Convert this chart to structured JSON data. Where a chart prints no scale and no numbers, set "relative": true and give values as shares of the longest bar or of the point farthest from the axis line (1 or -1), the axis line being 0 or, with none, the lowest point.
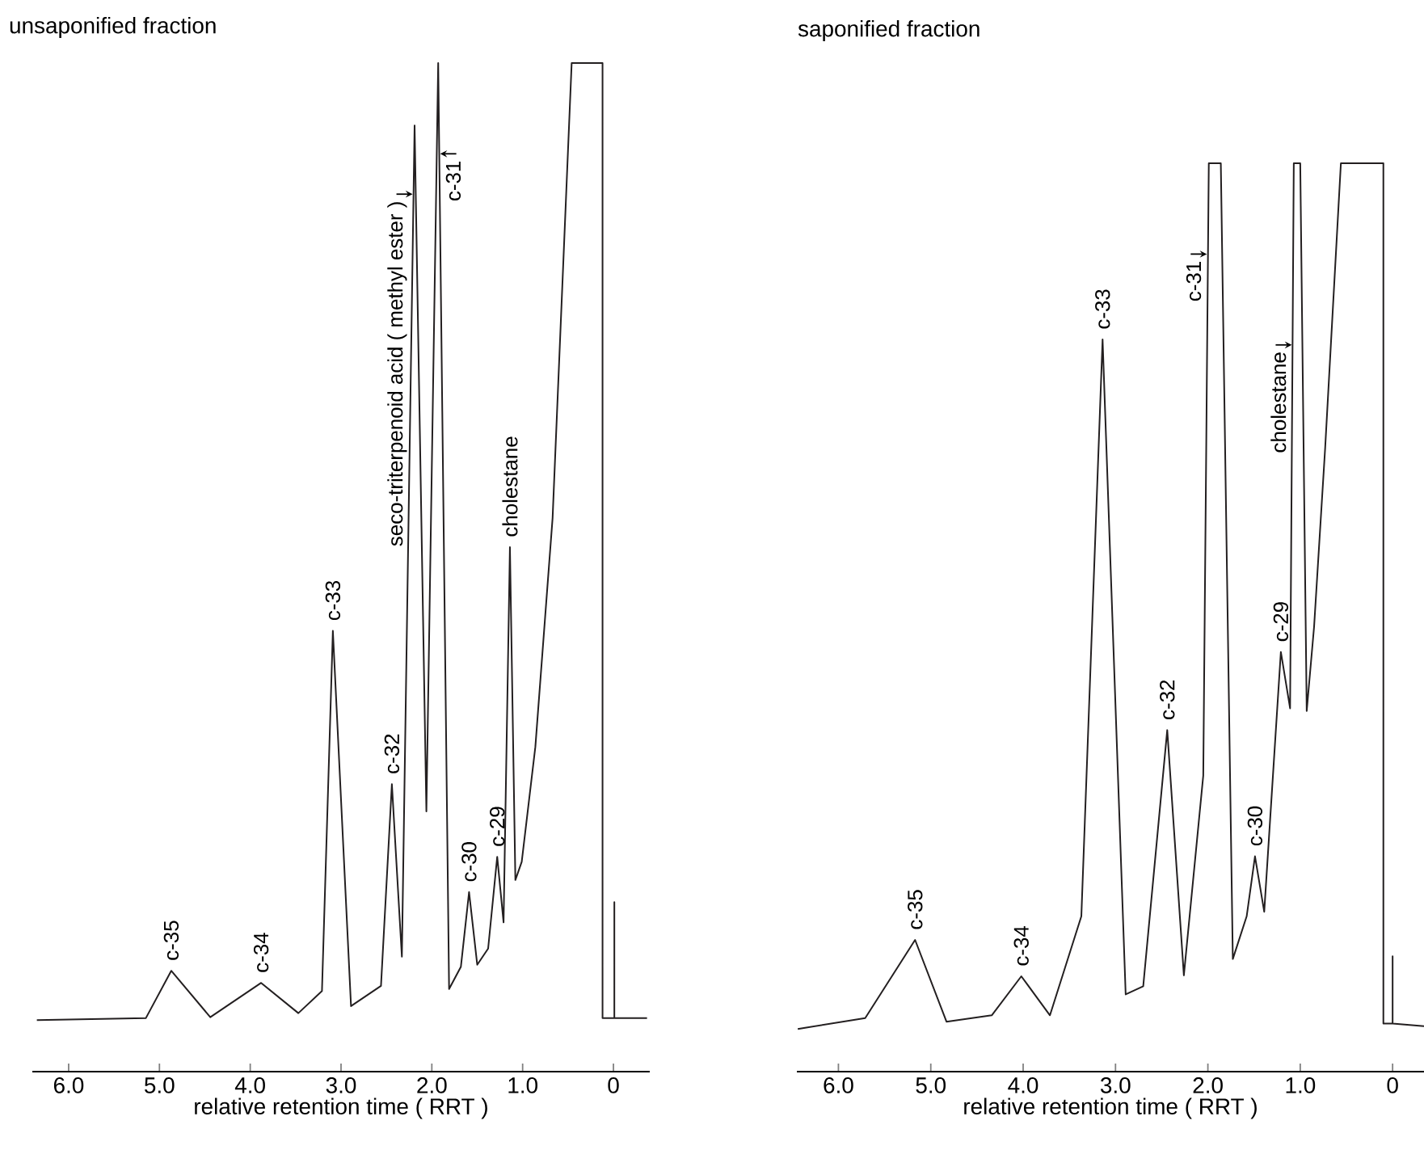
{
  "chart_data": [
    {
      "type": "line",
      "title": "unsaponified fraction",
      "xlabel": "relative retention time ( RRT )",
      "relative": true,
      "xlim": [
        6.4,
        -0.4
      ],
      "xticks": [
        {
          "value": 6,
          "label": "6.0"
        },
        {
          "value": 5,
          "label": "5.0"
        },
        {
          "value": 4,
          "label": "4.0"
        },
        {
          "value": 3,
          "label": "3.0"
        },
        {
          "value": 2,
          "label": "2.0"
        },
        {
          "value": 1,
          "label": "1.0"
        },
        0
      ],
      "series": [
        {
          "color": "#231f20",
          "x": [
            6.35,
            5.15,
            4.87,
            4.44,
            3.88,
            3.47,
            3.21,
            3.09,
            2.89,
            2.56,
            2.44,
            2.33,
            2.19,
            2.06,
            1.93,
            1.81,
            1.68,
            1.59,
            1.5,
            1.38,
            1.28,
            1.21,
            1.14,
            1.08,
            1.01,
            0.86,
            0.67,
            0.46,
            0.12,
            0.12,
            -0.01,
            -0.01,
            -0.01,
            -0.37
          ],
          "values": [
            0.051,
            0.053,
            0.1,
            0.054,
            0.088,
            0.058,
            0.08,
            0.437,
            0.065,
            0.085,
            0.285,
            0.114,
            0.938,
            0.258,
            1.0,
            0.082,
            0.104,
            0.178,
            0.106,
            0.122,
            0.213,
            0.148,
            0.52,
            0.19,
            0.208,
            0.322,
            0.549,
            1.0,
            1.0,
            0.053,
            0.053,
            0.168,
            0.053,
            0.053
          ]
        }
      ],
      "annotations": [
        {
          "text": "c-35",
          "x": 4.87,
          "y": 0.1
        },
        {
          "text": "c-34",
          "x": 3.88,
          "y": 0.088
        },
        {
          "text": "c-33",
          "x": 3.09,
          "y": 0.437
        },
        {
          "text": "c-32",
          "x": 2.44,
          "y": 0.285
        },
        {
          "text": "seco-triterpenoid acid ( methyl ester )",
          "x": 2.2,
          "y": 0.87
        },
        {
          "text": "c-31",
          "x": 1.92,
          "y": 0.91
        },
        {
          "text": "c-30",
          "x": 1.59,
          "y": 0.178
        },
        {
          "text": "c-29",
          "x": 1.28,
          "y": 0.213
        },
        {
          "text": "cholestane",
          "x": 1.14,
          "y": 0.52
        }
      ]
    },
    {
      "type": "line",
      "title": "saponified fraction",
      "xlabel": "relative retention time ( RRT )",
      "relative": true,
      "xlim": [
        6.45,
        -0.34
      ],
      "xticks": [
        {
          "value": 6,
          "label": "6.0"
        },
        {
          "value": 5,
          "label": "5.0"
        },
        {
          "value": 4,
          "label": "4.0"
        },
        {
          "value": 3,
          "label": "3.0"
        },
        {
          "value": 2,
          "label": "2.0"
        },
        {
          "value": 1,
          "label": "1.0"
        },
        0
      ],
      "series": [
        {
          "color": "#231f20",
          "x": [
            6.44,
            5.71,
            5.17,
            4.83,
            4.34,
            4.02,
            3.71,
            3.37,
            3.14,
            2.89,
            2.7,
            2.44,
            2.26,
            2.05,
            1.99,
            1.86,
            1.73,
            1.58,
            1.49,
            1.39,
            1.21,
            1.11,
            1.07,
            1.0,
            0.93,
            0.85,
            0.73,
            0.56,
            0.1,
            0.1,
            0.0,
            0.0,
            0.0,
            -0.34
          ],
          "values": [
            0.047,
            0.059,
            0.145,
            0.055,
            0.062,
            0.105,
            0.062,
            0.171,
            0.806,
            0.085,
            0.094,
            0.376,
            0.106,
            0.326,
            1.0,
            1.0,
            0.124,
            0.171,
            0.237,
            0.176,
            0.462,
            0.4,
            1.0,
            1.0,
            0.397,
            0.49,
            0.687,
            1.0,
            1.0,
            0.053,
            0.053,
            0.127,
            0.053,
            0.05
          ]
        }
      ],
      "annotations": [
        {
          "text": "c-35",
          "x": 5.17,
          "y": 0.145
        },
        {
          "text": "c-34",
          "x": 4.02,
          "y": 0.105
        },
        {
          "text": "c-33",
          "x": 3.14,
          "y": 0.806
        },
        {
          "text": "c-32",
          "x": 2.44,
          "y": 0.376
        },
        {
          "text": "c-31",
          "x": 2.0,
          "y": 0.9
        },
        {
          "text": "c-30",
          "x": 1.49,
          "y": 0.237
        },
        {
          "text": "c-29",
          "x": 1.21,
          "y": 0.462
        },
        {
          "text": "cholestane",
          "x": 1.08,
          "y": 0.8
        }
      ]
    }
  ]
}
